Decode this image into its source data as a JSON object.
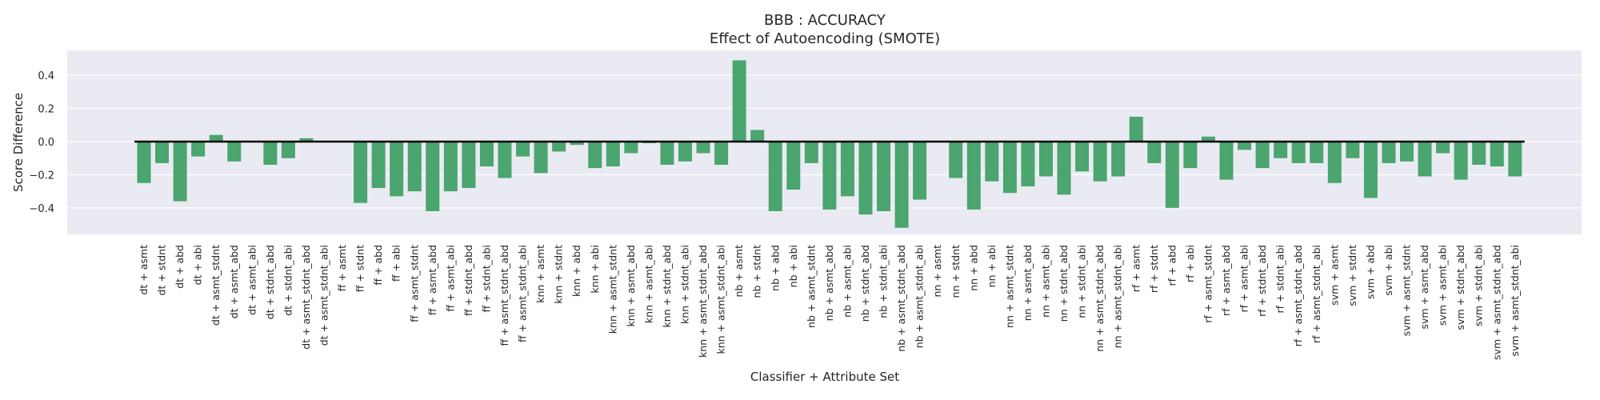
{
  "chart_data": {
    "type": "bar",
    "title": "BBB : ACCURACY",
    "subtitle": "Effect of Autoencoding (SMOTE)",
    "xlabel": "Classifier + Attribute Set",
    "ylabel": "Score Difference",
    "ylim": [
      -0.56,
      0.55
    ],
    "yticks": [
      0.4,
      0.2,
      0.0,
      -0.2,
      -0.4
    ],
    "ytick_labels": [
      "0.4",
      "0.2",
      "0.0",
      "−0.2",
      "−0.4"
    ],
    "grid": true,
    "bar_color": "#4aa56f",
    "zero_line": true,
    "categories": [
      "dt + asmt",
      "dt + stdnt",
      "dt + abd",
      "dt + abi",
      "dt + asmt_stdnt",
      "dt + asmt_abd",
      "dt + asmt_abi",
      "dt + stdnt_abd",
      "dt + stdnt_abi",
      "dt + asmt_stdnt_abd",
      "dt + asmt_stdnt_abi",
      "ff + asmt",
      "ff + stdnt",
      "ff + abd",
      "ff + abi",
      "ff + asmt_stdnt",
      "ff + asmt_abd",
      "ff + asmt_abi",
      "ff + stdnt_abd",
      "ff + stdnt_abi",
      "ff + asmt_stdnt_abd",
      "ff + asmt_stdnt_abi",
      "knn + asmt",
      "knn + stdnt",
      "knn + abd",
      "knn + abi",
      "knn + asmt_stdnt",
      "knn + asmt_abd",
      "knn + asmt_abi",
      "knn + stdnt_abd",
      "knn + stdnt_abi",
      "knn + asmt_stdnt_abd",
      "knn + asmt_stdnt_abi",
      "nb + asmt",
      "nb + stdnt",
      "nb + abd",
      "nb + abi",
      "nb + asmt_stdnt",
      "nb + asmt_abd",
      "nb + asmt_abi",
      "nb + stdnt_abd",
      "nb + stdnt_abi",
      "nb + asmt_stdnt_abd",
      "nb + asmt_stdnt_abi",
      "nn + asmt",
      "nn + stdnt",
      "nn + abd",
      "nn + abi",
      "nn + asmt_stdnt",
      "nn + asmt_abd",
      "nn + asmt_abi",
      "nn + stdnt_abd",
      "nn + stdnt_abi",
      "nn + asmt_stdnt_abd",
      "nn + asmt_stdnt_abi",
      "rf + asmt",
      "rf + stdnt",
      "rf + abd",
      "rf + abi",
      "rf + asmt_stdnt",
      "rf + asmt_abd",
      "rf + asmt_abi",
      "rf + stdnt_abd",
      "rf + stdnt_abi",
      "rf + asmt_stdnt_abd",
      "rf + asmt_stdnt_abi",
      "svm + asmt",
      "svm + stdnt",
      "svm + abd",
      "svm + abi",
      "svm + asmt_stdnt",
      "svm + asmt_abd",
      "svm + asmt_abi",
      "svm + stdnt_abd",
      "svm + stdnt_abi",
      "svm + asmt_stdnt_abd",
      "svm + asmt_stdnt_abi"
    ],
    "values": [
      -0.25,
      -0.13,
      -0.36,
      -0.09,
      0.04,
      -0.12,
      0.0,
      -0.14,
      -0.1,
      0.02,
      0.0,
      0.0,
      -0.37,
      -0.28,
      -0.33,
      -0.3,
      -0.42,
      -0.3,
      -0.28,
      -0.15,
      -0.22,
      -0.09,
      -0.19,
      -0.06,
      -0.02,
      -0.16,
      -0.15,
      -0.07,
      -0.01,
      -0.14,
      -0.12,
      -0.07,
      -0.14,
      0.49,
      0.07,
      -0.42,
      -0.29,
      -0.13,
      -0.41,
      -0.33,
      -0.44,
      -0.42,
      -0.52,
      -0.35,
      0.0,
      -0.22,
      -0.41,
      -0.24,
      -0.31,
      -0.27,
      -0.21,
      -0.32,
      -0.18,
      -0.24,
      -0.21,
      0.15,
      -0.13,
      -0.4,
      -0.16,
      0.03,
      -0.23,
      -0.05,
      -0.16,
      -0.1,
      -0.13,
      -0.13,
      -0.25,
      -0.1,
      -0.34,
      -0.13,
      -0.12,
      -0.21,
      -0.07,
      -0.23,
      -0.14,
      -0.15,
      -0.21
    ]
  }
}
